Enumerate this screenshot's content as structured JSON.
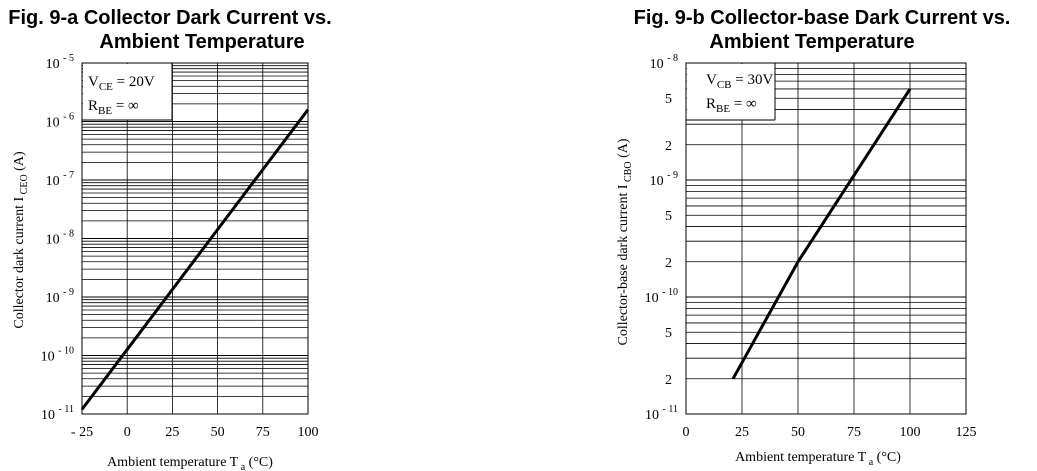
{
  "chart_data": [
    {
      "type": "line",
      "title_line1": "Fig. 9-a Collector Dark Current vs.",
      "title_line2": "Ambient Temperature",
      "xlabel": "Ambient temperature T",
      "xlabel_sub": "a",
      "xlabel_unit": "(°C)",
      "ylabel": "Collector dark current I",
      "ylabel_sub": "CEO",
      "ylabel_unit": "(A)",
      "y_scale": "log",
      "xlim": [
        -25,
        100
      ],
      "ylim_exp": [
        -11,
        -5
      ],
      "x_ticks": [
        {
          "value": -25,
          "label": "- 25"
        },
        {
          "value": 0,
          "label": "0"
        },
        {
          "value": 25,
          "label": "25"
        },
        {
          "value": 50,
          "label": "50"
        },
        {
          "value": 75,
          "label": "75"
        },
        {
          "value": 100,
          "label": "100"
        }
      ],
      "y_ticks": [
        {
          "value": 1e-05,
          "base": "10",
          "exp": "- 5"
        },
        {
          "value": 1e-06,
          "base": "10",
          "exp": "- 6"
        },
        {
          "value": 1e-07,
          "base": "10",
          "exp": "- 7"
        },
        {
          "value": 1e-08,
          "base": "10",
          "exp": "- 8"
        },
        {
          "value": 1e-09,
          "base": "10",
          "exp": "- 9"
        },
        {
          "value": 1e-10,
          "base": "10",
          "exp": "- 10"
        },
        {
          "value": 1e-11,
          "base": "10",
          "exp": "- 11"
        }
      ],
      "conditions": [
        {
          "main": "V",
          "sub": "CE",
          "rest": " = 20V"
        },
        {
          "main": "R",
          "sub": "BE",
          "rest": " = ∞"
        }
      ],
      "grid": true,
      "series": [
        {
          "x": [
            -25,
            100
          ],
          "y": [
            1.2e-11,
            1.6e-06
          ]
        }
      ]
    },
    {
      "type": "line",
      "title_line1": "Fig. 9-b Collector-base Dark Current vs.",
      "title_line2": "Ambient Temperature",
      "xlabel": "Ambient temperature T",
      "xlabel_sub": "a",
      "xlabel_unit": "(°C)",
      "ylabel": "Collector-base dark current I",
      "ylabel_sub": "CBO",
      "ylabel_unit": "(A)",
      "y_scale": "log",
      "xlim": [
        0,
        125
      ],
      "ylim_exp": [
        -11,
        -8
      ],
      "x_ticks": [
        {
          "value": 0,
          "label": "0"
        },
        {
          "value": 25,
          "label": "25"
        },
        {
          "value": 50,
          "label": "50"
        },
        {
          "value": 75,
          "label": "75"
        },
        {
          "value": 100,
          "label": "100"
        },
        {
          "value": 125,
          "label": "125"
        }
      ],
      "y_ticks": [
        {
          "value": 1e-08,
          "base": "10",
          "exp": "- 8"
        },
        {
          "value": 5e-09,
          "base": "5",
          "exp": ""
        },
        {
          "value": 2e-09,
          "base": "2",
          "exp": ""
        },
        {
          "value": 1e-09,
          "base": "10",
          "exp": "- 9"
        },
        {
          "value": 5e-10,
          "base": "5",
          "exp": ""
        },
        {
          "value": 2e-10,
          "base": "2",
          "exp": ""
        },
        {
          "value": 1e-10,
          "base": "10",
          "exp": "- 10"
        },
        {
          "value": 5e-11,
          "base": "5",
          "exp": ""
        },
        {
          "value": 2e-11,
          "base": "2",
          "exp": ""
        },
        {
          "value": 1e-11,
          "base": "10",
          "exp": "- 11"
        }
      ],
      "conditions": [
        {
          "main": "V",
          "sub": "CB",
          "rest": " = 30V"
        },
        {
          "main": "R",
          "sub": "BE",
          "rest": " = ∞"
        }
      ],
      "grid": true,
      "series": [
        {
          "x": [
            21,
            50,
            100
          ],
          "y": [
            2e-11,
            2e-10,
            6e-09
          ]
        }
      ]
    }
  ]
}
